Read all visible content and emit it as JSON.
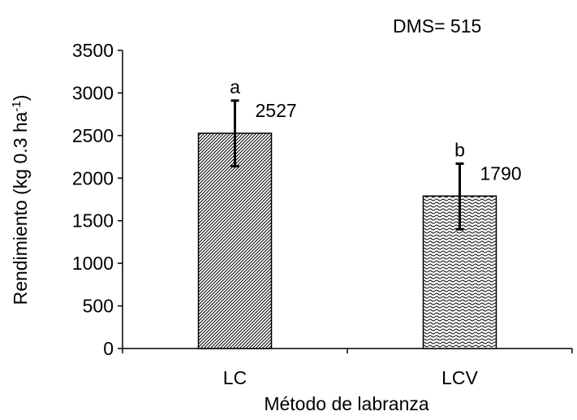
{
  "chart_data": {
    "type": "bar",
    "title": "",
    "annotation": "DMS= 515",
    "xlabel": "Método de labranza",
    "ylabel": {
      "base": "Rendimiento  (kg 0.3 ha",
      "superscript": "-1",
      "close": ")"
    },
    "categories": [
      "LC",
      "LCV"
    ],
    "values": [
      2527,
      1790
    ],
    "error_bars": [
      {
        "low": 2140,
        "high": 2910
      },
      {
        "low": 1400,
        "high": 2170
      }
    ],
    "value_labels": [
      "2527",
      "1790"
    ],
    "significance_letters": [
      "a",
      "b"
    ],
    "patterns": [
      "diagonal-hatch",
      "wave-hatch"
    ],
    "ylim": [
      0,
      3500
    ],
    "yticks": [
      0,
      500,
      1000,
      1500,
      2000,
      2500,
      3000,
      3500
    ],
    "grid": false,
    "legend": "none",
    "colors": {
      "axis": "#000000",
      "bar_fill": "#ffffff",
      "pattern": "#000000"
    }
  }
}
